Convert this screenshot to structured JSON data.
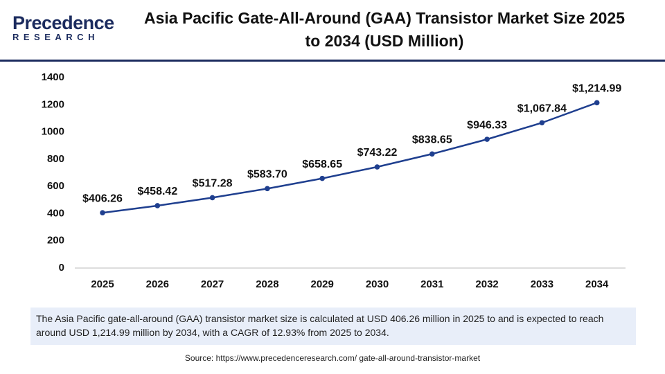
{
  "logo": {
    "name": "recedence",
    "initial": "P",
    "tagline": "RESEARCH"
  },
  "chart_data": {
    "type": "line",
    "title": "Asia Pacific Gate-All-Around (GAA) Transistor Market Size 2025 to 2034 (USD Million)",
    "categories": [
      "2025",
      "2026",
      "2027",
      "2028",
      "2029",
      "2030",
      "2031",
      "2032",
      "2033",
      "2034"
    ],
    "values": [
      406.26,
      458.42,
      517.28,
      583.7,
      658.65,
      743.22,
      838.65,
      946.33,
      1067.84,
      1214.99
    ],
    "value_labels": [
      "$406.26",
      "$458.42",
      "$517.28",
      "$583.70",
      "$658.65",
      "$743.22",
      "$838.65",
      "$946.33",
      "$1,067.84",
      "$1,214.99"
    ],
    "color": "#1f3f8f",
    "ylim": [
      0,
      1400
    ],
    "yticks": [
      0,
      200,
      400,
      600,
      800,
      1000,
      1200,
      1400
    ],
    "grid": false,
    "description": "The Asia Pacific gate-all-around (GAA) transistor market size is calculated at USD 406.26 million in 2025 to and is expected to reach around USD 1,214.99 million by 2034, with a CAGR of 12.93% from 2025 to 2034.",
    "source": "Source: https://www.precedenceresearch.com/ gate-all-around-transistor-market"
  }
}
